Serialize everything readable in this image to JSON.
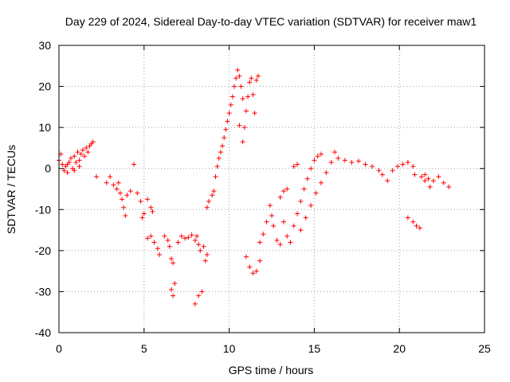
{
  "chart_data": {
    "type": "scatter",
    "title": "Day 229 of 2024, Sidereal Day-to-day VTEC variation (SDTVAR) for receiver maw1",
    "xlabel": "GPS time / hours",
    "ylabel": "SDTVAR / TECUs",
    "xlim": [
      0,
      25
    ],
    "ylim": [
      -40,
      30
    ],
    "xticks": [
      0,
      5,
      10,
      15,
      20,
      25
    ],
    "yticks": [
      -40,
      -30,
      -20,
      -10,
      0,
      10,
      20,
      30
    ],
    "grid": true,
    "marker": "+",
    "color": "#ff0000",
    "series": [
      {
        "name": "SDTVAR",
        "points": [
          [
            0.0,
            2.0
          ],
          [
            0.1,
            3.5
          ],
          [
            0.2,
            1.0
          ],
          [
            0.3,
            -0.5
          ],
          [
            0.4,
            0.5
          ],
          [
            0.5,
            -1.0
          ],
          [
            0.6,
            1.5
          ],
          [
            0.7,
            2.5
          ],
          [
            0.8,
            0.0
          ],
          [
            0.9,
            3.0
          ],
          [
            1.0,
            1.5
          ],
          [
            1.1,
            4.0
          ],
          [
            1.2,
            2.0
          ],
          [
            1.3,
            3.5
          ],
          [
            1.4,
            4.5
          ],
          [
            1.5,
            3.0
          ],
          [
            1.6,
            5.0
          ],
          [
            1.7,
            4.0
          ],
          [
            1.8,
            5.5
          ],
          [
            1.9,
            6.0
          ],
          [
            2.0,
            6.5
          ],
          [
            0.5,
            1.0
          ],
          [
            0.9,
            -0.5
          ],
          [
            1.2,
            0.5
          ],
          [
            2.2,
            -2.0
          ],
          [
            2.8,
            -3.5
          ],
          [
            3.0,
            -2.0
          ],
          [
            3.2,
            -4.0
          ],
          [
            3.4,
            -5.0
          ],
          [
            3.5,
            -3.5
          ],
          [
            3.6,
            -6.0
          ],
          [
            3.7,
            -7.5
          ],
          [
            3.8,
            -9.5
          ],
          [
            3.9,
            -11.5
          ],
          [
            4.0,
            -6.5
          ],
          [
            4.2,
            -5.5
          ],
          [
            4.4,
            1.0
          ],
          [
            4.6,
            -6.0
          ],
          [
            4.8,
            -8.0
          ],
          [
            4.9,
            -12.0
          ],
          [
            5.0,
            -11.0
          ],
          [
            5.2,
            -7.5
          ],
          [
            5.4,
            -9.5
          ],
          [
            5.5,
            -10.5
          ],
          [
            5.2,
            -17.0
          ],
          [
            5.4,
            -16.5
          ],
          [
            5.6,
            -18.0
          ],
          [
            5.8,
            -19.5
          ],
          [
            5.9,
            -21.0
          ],
          [
            6.2,
            -16.5
          ],
          [
            6.4,
            -17.5
          ],
          [
            6.5,
            -19.0
          ],
          [
            6.6,
            -22.0
          ],
          [
            6.7,
            -23.0
          ],
          [
            6.6,
            -29.5
          ],
          [
            6.7,
            -31.0
          ],
          [
            6.8,
            -28.0
          ],
          [
            7.0,
            -18.0
          ],
          [
            7.2,
            -16.5
          ],
          [
            7.4,
            -17.0
          ],
          [
            7.6,
            -16.8
          ],
          [
            7.8,
            -16.2
          ],
          [
            8.0,
            -17.5
          ],
          [
            8.1,
            -16.5
          ],
          [
            8.2,
            -18.5
          ],
          [
            8.3,
            -20.0
          ],
          [
            8.5,
            -19.0
          ],
          [
            8.0,
            -33.0
          ],
          [
            8.2,
            -31.0
          ],
          [
            8.4,
            -30.0
          ],
          [
            8.7,
            -21.0
          ],
          [
            8.6,
            -22.5
          ],
          [
            8.7,
            -9.5
          ],
          [
            8.8,
            -8.0
          ],
          [
            9.0,
            -6.5
          ],
          [
            9.1,
            -5.5
          ],
          [
            9.2,
            -2.0
          ],
          [
            9.3,
            0.5
          ],
          [
            9.4,
            2.5
          ],
          [
            9.5,
            4.0
          ],
          [
            9.6,
            5.5
          ],
          [
            9.7,
            7.5
          ],
          [
            9.8,
            9.5
          ],
          [
            9.9,
            11.5
          ],
          [
            10.0,
            13.5
          ],
          [
            10.1,
            15.5
          ],
          [
            10.2,
            17.5
          ],
          [
            10.3,
            20.0
          ],
          [
            10.4,
            22.0
          ],
          [
            10.5,
            24.0
          ],
          [
            10.6,
            22.5
          ],
          [
            10.7,
            20.0
          ],
          [
            10.8,
            17.0
          ],
          [
            10.6,
            10.5
          ],
          [
            10.8,
            6.5
          ],
          [
            10.9,
            10.0
          ],
          [
            11.0,
            14.0
          ],
          [
            11.1,
            17.5
          ],
          [
            11.2,
            21.0
          ],
          [
            11.3,
            22.0
          ],
          [
            11.4,
            18.0
          ],
          [
            11.5,
            13.5
          ],
          [
            11.6,
            21.5
          ],
          [
            11.7,
            22.5
          ],
          [
            11.0,
            -21.5
          ],
          [
            11.2,
            -24.0
          ],
          [
            11.4,
            -25.5
          ],
          [
            11.6,
            -25.0
          ],
          [
            11.8,
            -22.5
          ],
          [
            11.8,
            -18.0
          ],
          [
            12.0,
            -16.0
          ],
          [
            12.2,
            -13.0
          ],
          [
            12.4,
            -9.0
          ],
          [
            12.5,
            -11.5
          ],
          [
            12.6,
            -14.0
          ],
          [
            12.8,
            -17.5
          ],
          [
            13.0,
            -18.5
          ],
          [
            13.0,
            -7.0
          ],
          [
            13.2,
            -5.5
          ],
          [
            13.4,
            -5.0
          ],
          [
            13.2,
            -13.0
          ],
          [
            13.4,
            -16.5
          ],
          [
            13.6,
            -18.0
          ],
          [
            13.8,
            0.5
          ],
          [
            14.0,
            1.0
          ],
          [
            13.8,
            -14.0
          ],
          [
            14.0,
            -11.0
          ],
          [
            14.2,
            -8.0
          ],
          [
            14.4,
            -5.0
          ],
          [
            14.6,
            -2.5
          ],
          [
            14.8,
            0.0
          ],
          [
            15.0,
            2.0
          ],
          [
            15.2,
            3.0
          ],
          [
            15.4,
            3.5
          ],
          [
            14.2,
            -15.0
          ],
          [
            14.5,
            -12.0
          ],
          [
            14.8,
            -9.0
          ],
          [
            15.1,
            -6.0
          ],
          [
            15.4,
            -3.5
          ],
          [
            15.7,
            -1.0
          ],
          [
            16.0,
            1.5
          ],
          [
            16.2,
            4.0
          ],
          [
            16.4,
            2.5
          ],
          [
            16.8,
            2.0
          ],
          [
            17.2,
            1.5
          ],
          [
            17.6,
            1.8
          ],
          [
            18.0,
            1.0
          ],
          [
            18.4,
            0.5
          ],
          [
            18.8,
            -0.5
          ],
          [
            19.0,
            -1.5
          ],
          [
            19.3,
            -3.0
          ],
          [
            19.6,
            -0.5
          ],
          [
            19.9,
            0.5
          ],
          [
            20.2,
            1.0
          ],
          [
            20.5,
            1.5
          ],
          [
            20.8,
            0.5
          ],
          [
            20.9,
            -1.5
          ],
          [
            21.3,
            -2.0
          ],
          [
            21.5,
            -3.0
          ],
          [
            21.8,
            -4.5
          ],
          [
            22.0,
            -3.0
          ],
          [
            22.3,
            -2.0
          ],
          [
            22.6,
            -3.5
          ],
          [
            22.9,
            -4.5
          ],
          [
            20.5,
            -12.0
          ],
          [
            20.8,
            -13.0
          ],
          [
            21.0,
            -14.0
          ],
          [
            21.2,
            -14.5
          ],
          [
            21.5,
            -1.5
          ],
          [
            21.7,
            -2.5
          ]
        ]
      }
    ]
  }
}
